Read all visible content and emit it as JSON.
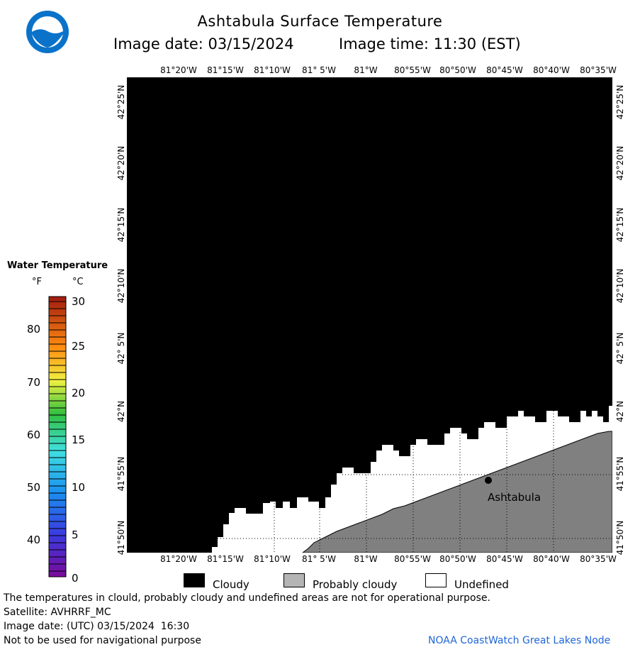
{
  "header": {
    "title": "Ashtabula Surface Temperature",
    "date_text": "Image date: 03/15/2024",
    "time_text": "Image time: 11:30 (EST)",
    "logo_text": "NOAA"
  },
  "map": {
    "lon_labels": [
      "81°20'W",
      "81°15'W",
      "81°10'W",
      "81° 5'W",
      "81°W",
      "80°55'W",
      "80°50'W",
      "80°45'W",
      "80°40'W",
      "80°35'W"
    ],
    "lat_labels": [
      "42°25'N",
      "42°20'N",
      "42°15'N",
      "42°10'N",
      "42° 5'N",
      "42°N",
      "41°55'N",
      "41°50'N"
    ],
    "place_label": "Ashtabula",
    "colors": {
      "cloudy": "#000000",
      "land": "#808080",
      "undefined": "#ffffff"
    }
  },
  "legend": {
    "title": "Water Temperature",
    "unit_f": "°F",
    "unit_c": "°C",
    "f_ticks": [
      "80",
      "70",
      "60",
      "50",
      "40"
    ],
    "c_ticks": [
      "30",
      "25",
      "20",
      "15",
      "10",
      "5",
      "0"
    ]
  },
  "key": {
    "cloudy": "Cloudy",
    "probably_cloudy": "Probably cloudy",
    "undefined": "Undefined"
  },
  "footer": {
    "note": "The temperatures in clould, probably cloudy and undefined areas are not for operational purpose.",
    "satellite": "Satellite: AVHRRF_MC",
    "utc_date": "Image date: (UTC) 03/15/2024  16:30",
    "nav_warning": "Not to be used for navigational purpose",
    "credit": "NOAA CoastWatch Great Lakes Node"
  }
}
